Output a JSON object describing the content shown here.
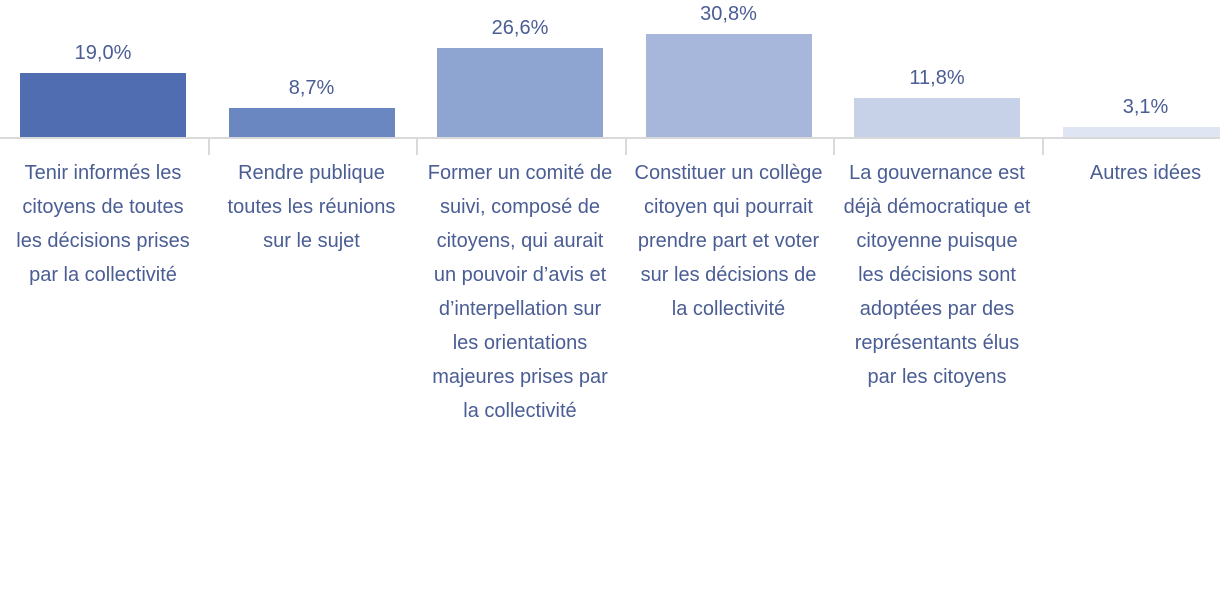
{
  "chart_data": {
    "type": "bar",
    "categories": [
      "Tenir informés les citoyens de toutes les décisions prises par la collectivité",
      "Rendre publique toutes les réunions sur le sujet",
      "Former un comité de suivi, composé de citoyens, qui aurait un pouvoir d’avis et d’interpellation sur les orientations majeures prises par la collectivité",
      "Constituer un collège citoyen qui pourrait prendre part et voter sur les décisions de la collectivité",
      "La gouvernance est déjà démocratique et citoyenne puisque les décisions sont adoptées par des représentants élus par les citoyens",
      "Autres idées"
    ],
    "values": [
      19.0,
      8.7,
      26.6,
      30.8,
      11.8,
      3.1
    ],
    "value_labels": [
      "19,0%",
      "8,7%",
      "26,6%",
      "30,8%",
      "11,8%",
      "3,1%"
    ],
    "colors": [
      "#4f6db0",
      "#6b87c1",
      "#8ea4d1",
      "#a7b7dc",
      "#c7d2e8",
      "#dfe5f2"
    ]
  }
}
